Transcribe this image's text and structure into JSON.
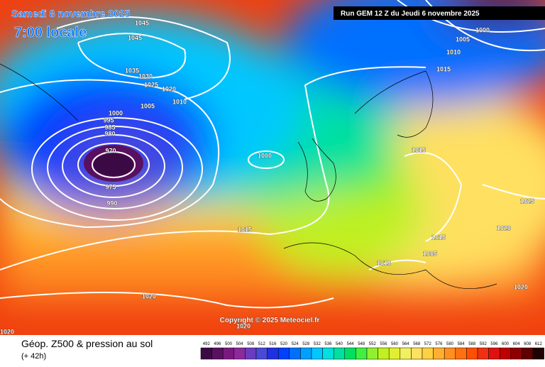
{
  "header": {
    "date": "Samedi 8 novembre 2025",
    "time": "7:00 locale",
    "run": "Run GEM 12 Z du Jeudi 6 novembre 2025"
  },
  "copyright": "Copyright © 2025 Meteociel.fr",
  "footer": {
    "title": "Géop. Z500 & pression au sol",
    "lead": "(+ 42h)"
  },
  "isobars": [
    "1045",
    "1045",
    "1035",
    "1030",
    "1025",
    "1020",
    "1010",
    "1005",
    "1000",
    "995",
    "985",
    "980",
    "970",
    "975",
    "990",
    "1000",
    "1015",
    "1020",
    "1020",
    "1020",
    "1000",
    "1005",
    "1010",
    "1015",
    "1015",
    "1025",
    "1020",
    "1015",
    "1005",
    "1010",
    "1020"
  ],
  "colorbar": {
    "values": [
      492,
      496,
      500,
      504,
      508,
      512,
      516,
      520,
      524,
      528,
      532,
      536,
      540,
      544,
      548,
      552,
      556,
      560,
      564,
      568,
      572,
      576,
      580,
      584,
      588,
      592,
      596,
      600,
      604,
      608,
      612
    ],
    "colors": [
      "#3b0a45",
      "#5a1060",
      "#7a1a80",
      "#8c2a9c",
      "#6a3cc0",
      "#4a4ad8",
      "#2030e0",
      "#0040ff",
      "#0070ff",
      "#00a0ff",
      "#00c8ff",
      "#00e0e0",
      "#00e0a0",
      "#00e060",
      "#40f040",
      "#90f030",
      "#c0f020",
      "#e0f030",
      "#f0f060",
      "#ffe060",
      "#ffd040",
      "#ffb030",
      "#ff9020",
      "#ff7010",
      "#ff5000",
      "#f03010",
      "#e01010",
      "#c00000",
      "#900000",
      "#600000",
      "#200000"
    ]
  }
}
